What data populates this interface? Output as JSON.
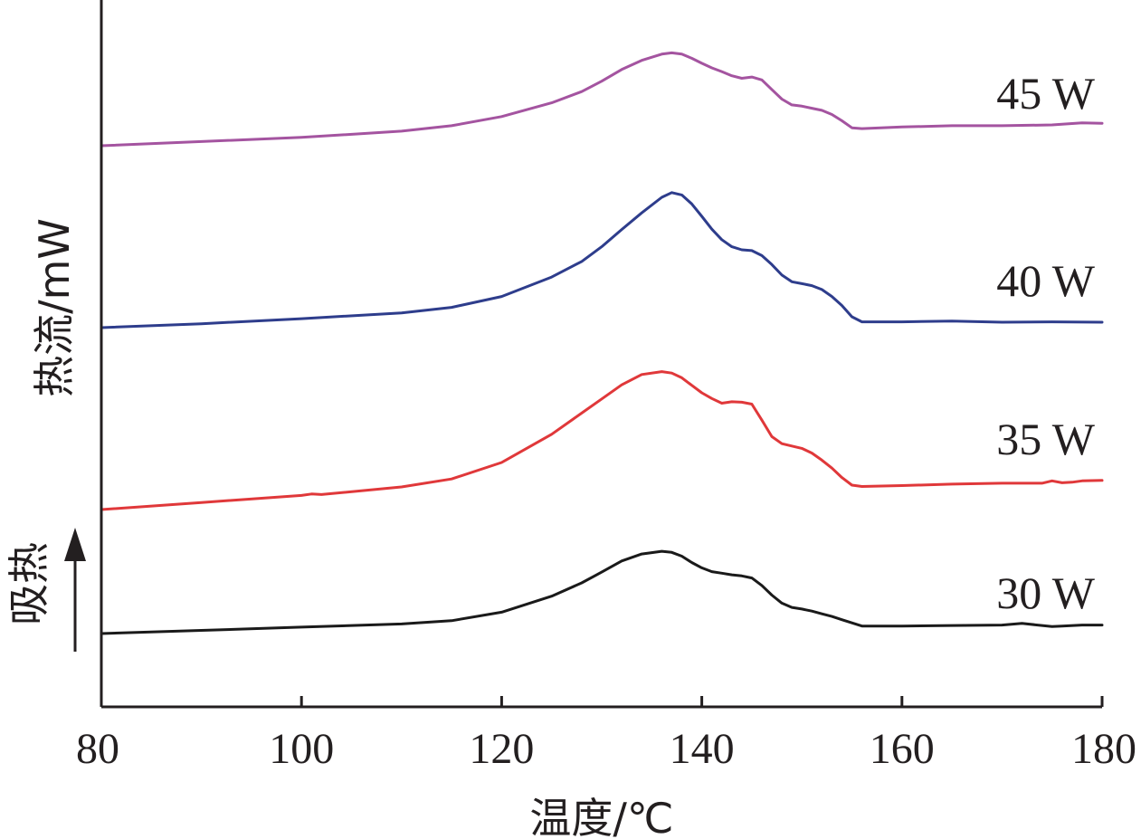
{
  "chart_data": {
    "type": "line",
    "xlabel": "温度/℃",
    "ylabel": "热流/mW",
    "endo_label": "吸热",
    "xlim": [
      80,
      180
    ],
    "xticks": [
      80,
      100,
      120,
      140,
      160,
      180
    ],
    "grid": false,
    "legend": "none",
    "series": [
      {
        "name": "30 W",
        "color": "#1a1a1a",
        "x": [
          80,
          90,
          100,
          110,
          115,
          120,
          125,
          128,
          130,
          132,
          134,
          136,
          137,
          138,
          139,
          140,
          141,
          142,
          143,
          144,
          145,
          146,
          147,
          148,
          149,
          150,
          151,
          152,
          153,
          154,
          155,
          156,
          160,
          165,
          170,
          172,
          174,
          175,
          176,
          178,
          180
        ],
        "y": [
          0.0,
          0.6,
          1.2,
          1.8,
          2.4,
          4.0,
          7.0,
          9.5,
          11.5,
          13.6,
          14.9,
          15.4,
          15.2,
          14.5,
          13.3,
          12.3,
          11.6,
          11.3,
          11.0,
          10.8,
          10.4,
          9.0,
          7.2,
          5.7,
          4.9,
          4.6,
          4.2,
          3.7,
          3.2,
          2.6,
          2.0,
          1.4,
          1.4,
          1.5,
          1.6,
          1.9,
          1.5,
          1.3,
          1.4,
          1.6,
          1.6
        ]
      },
      {
        "name": "35 W",
        "color": "#e0383a",
        "x": [
          80,
          90,
          100,
          101,
          102,
          110,
          115,
          120,
          125,
          128,
          130,
          132,
          134,
          136,
          137,
          138,
          139,
          140,
          141,
          142,
          143,
          144,
          145,
          146,
          147,
          148,
          149,
          150,
          151,
          152,
          153,
          154,
          155,
          156,
          160,
          165,
          170,
          174,
          175,
          176,
          177,
          178,
          180
        ],
        "y": [
          0.0,
          1.5,
          3.0,
          3.3,
          3.2,
          4.8,
          6.5,
          10.0,
          16.0,
          20.5,
          23.5,
          26.5,
          28.7,
          29.3,
          29.0,
          28.0,
          26.4,
          24.8,
          23.6,
          22.6,
          22.9,
          22.8,
          22.4,
          19.0,
          15.5,
          14.0,
          13.5,
          13.0,
          12.0,
          10.5,
          8.8,
          6.8,
          5.2,
          4.9,
          5.1,
          5.4,
          5.6,
          5.6,
          6.1,
          5.7,
          5.8,
          6.1,
          6.2
        ]
      },
      {
        "name": "40 W",
        "color": "#2e3d8c",
        "x": [
          80,
          90,
          100,
          110,
          115,
          120,
          125,
          128,
          130,
          132,
          134,
          136,
          137,
          138,
          139,
          140,
          141,
          142,
          143,
          144,
          145,
          146,
          147,
          148,
          149,
          150,
          151,
          152,
          153,
          154,
          155,
          156,
          160,
          165,
          170,
          175,
          180
        ],
        "y": [
          0.0,
          1.0,
          2.3,
          3.8,
          5.2,
          8.0,
          13.0,
          17.0,
          20.8,
          25.2,
          29.5,
          33.5,
          34.7,
          34.1,
          31.8,
          28.6,
          25.3,
          22.6,
          20.8,
          20.0,
          19.8,
          18.5,
          16.2,
          13.5,
          11.8,
          11.3,
          10.8,
          9.8,
          8.0,
          5.7,
          2.8,
          1.5,
          1.5,
          1.7,
          1.4,
          1.5,
          1.4
        ]
      },
      {
        "name": "45 W",
        "color": "#a454a0",
        "x": [
          80,
          90,
          100,
          110,
          115,
          120,
          125,
          128,
          130,
          132,
          134,
          136,
          137,
          138,
          139,
          140,
          141,
          142,
          143,
          144,
          145,
          146,
          147,
          148,
          149,
          150,
          151,
          152,
          153,
          154,
          155,
          156,
          160,
          165,
          170,
          175,
          178,
          180
        ],
        "y": [
          0.0,
          1.0,
          2.0,
          3.5,
          4.8,
          7.0,
          10.3,
          13.0,
          15.5,
          18.3,
          20.5,
          22.0,
          22.3,
          22.0,
          21.0,
          19.8,
          18.7,
          17.8,
          16.8,
          16.2,
          16.5,
          15.8,
          13.5,
          11.2,
          9.8,
          9.5,
          9.0,
          8.5,
          7.5,
          6.0,
          4.3,
          4.1,
          4.5,
          4.8,
          4.8,
          5.0,
          5.5,
          5.4
        ]
      }
    ]
  }
}
